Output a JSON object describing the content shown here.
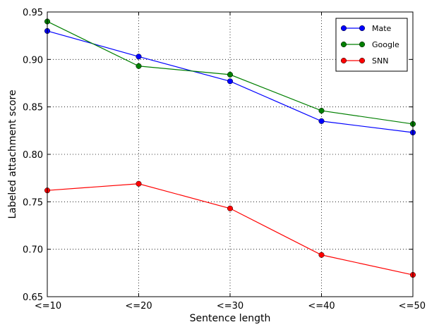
{
  "chart_data": {
    "type": "line",
    "title": "",
    "xlabel": "Sentence length",
    "ylabel": "Labeled attachment score",
    "categories": [
      "<=10",
      "<=20",
      "<=30",
      "<=40",
      "<=50"
    ],
    "ylim": [
      0.65,
      0.95
    ],
    "yticks": [
      "0.65",
      "0.70",
      "0.75",
      "0.80",
      "0.85",
      "0.90",
      "0.95"
    ],
    "grid": true,
    "legend_position": "top-right",
    "series": [
      {
        "name": "Mate",
        "color": "#0000ff",
        "values": [
          0.93,
          0.903,
          0.877,
          0.835,
          0.823
        ]
      },
      {
        "name": "Google",
        "color": "#007f00",
        "values": [
          0.94,
          0.893,
          0.884,
          0.846,
          0.832
        ]
      },
      {
        "name": "SNN",
        "color": "#ff0000",
        "values": [
          0.762,
          0.769,
          0.743,
          0.694,
          0.673
        ]
      }
    ]
  }
}
